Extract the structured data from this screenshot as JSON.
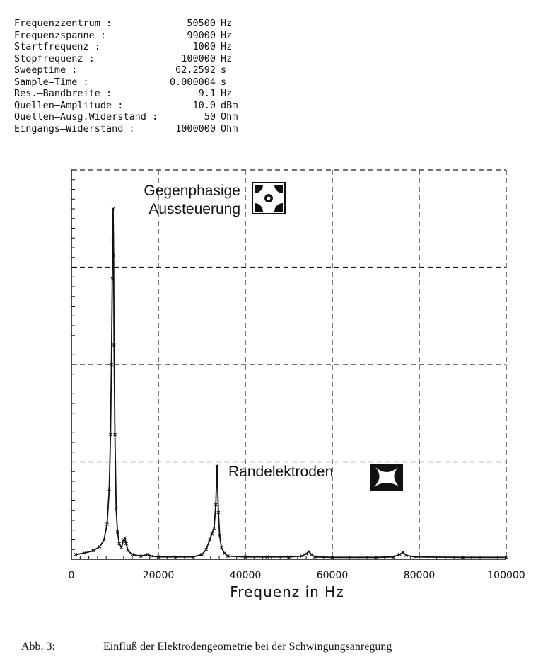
{
  "parameters": [
    {
      "label": "Frequenzzentrum :",
      "value": "50500",
      "unit": "Hz"
    },
    {
      "label": "Frequenzspanne :",
      "value": "99000",
      "unit": "Hz"
    },
    {
      "label": "Startfrequenz :",
      "value": "1000",
      "unit": "Hz"
    },
    {
      "label": "Stopfrequenz :",
      "value": "100000",
      "unit": "Hz"
    },
    {
      "label": "Sweeptime :",
      "value": "62.2592",
      "unit": "s"
    },
    {
      "label": "Sample–Time :",
      "value": "0.000004",
      "unit": "s"
    },
    {
      "label": "Res.–Bandbreite :",
      "value": "9.1",
      "unit": "Hz"
    },
    {
      "label": "Quellen–Amplitude :",
      "value": "10.0",
      "unit": "dBm"
    },
    {
      "label": "Quellen–Ausg.Widerstand :",
      "value": "50",
      "unit": "Ohm"
    },
    {
      "label": "Eingangs–Widerstand :",
      "value": "1000000",
      "unit": "Ohm"
    }
  ],
  "chart_data": {
    "type": "line",
    "xlabel": "Frequenz in Hz",
    "ylabel": "",
    "xlim": [
      0,
      100000
    ],
    "ylim": [
      0,
      1
    ],
    "x_ticks": [
      0,
      20000,
      40000,
      60000,
      80000,
      100000
    ],
    "x_tick_labels": [
      "0",
      "20000",
      "40000",
      "60000",
      "80000",
      "100000"
    ],
    "grid": true,
    "annotations": [
      {
        "text_lines": [
          "Gegenphasige",
          "Aussteuerung"
        ],
        "x": 9500,
        "y": 0.9,
        "icon": "electrode-antiphase-icon"
      },
      {
        "text_lines": [
          "Randelektroden"
        ],
        "x": 33500,
        "y": 0.2,
        "icon": "edge-electrode-icon"
      }
    ],
    "series": [
      {
        "name": "",
        "marker": "x",
        "x": [
          1000,
          3000,
          5000,
          6500,
          7500,
          8200,
          8700,
          9000,
          9200,
          9400,
          9500,
          9600,
          9700,
          9800,
          10000,
          10300,
          10600,
          11000,
          11500,
          12000,
          12300,
          12600,
          13000,
          14000,
          16000,
          17500,
          18500,
          20000,
          24000,
          28000,
          30000,
          31000,
          31800,
          32300,
          32800,
          33200,
          33500,
          33800,
          34100,
          34500,
          35200,
          36000,
          40000,
          45000,
          50000,
          53000,
          54000,
          54600,
          55200,
          56000,
          60000,
          70000,
          74000,
          75500,
          76200,
          77000,
          79000,
          90000,
          100000
        ],
        "y": [
          0.012,
          0.016,
          0.022,
          0.032,
          0.05,
          0.09,
          0.18,
          0.32,
          0.5,
          0.72,
          0.82,
          0.9,
          0.78,
          0.55,
          0.32,
          0.13,
          0.07,
          0.04,
          0.03,
          0.05,
          0.055,
          0.04,
          0.022,
          0.012,
          0.008,
          0.012,
          0.008,
          0.006,
          0.006,
          0.006,
          0.012,
          0.025,
          0.05,
          0.065,
          0.08,
          0.14,
          0.24,
          0.12,
          0.06,
          0.03,
          0.015,
          0.008,
          0.006,
          0.006,
          0.006,
          0.008,
          0.014,
          0.02,
          0.012,
          0.006,
          0.005,
          0.005,
          0.006,
          0.012,
          0.018,
          0.01,
          0.006,
          0.005,
          0.005
        ]
      }
    ]
  },
  "caption": {
    "label": "Abb. 3:",
    "text": "Einfluß der Elektrodengeometrie bei der Schwingungsanregung"
  }
}
